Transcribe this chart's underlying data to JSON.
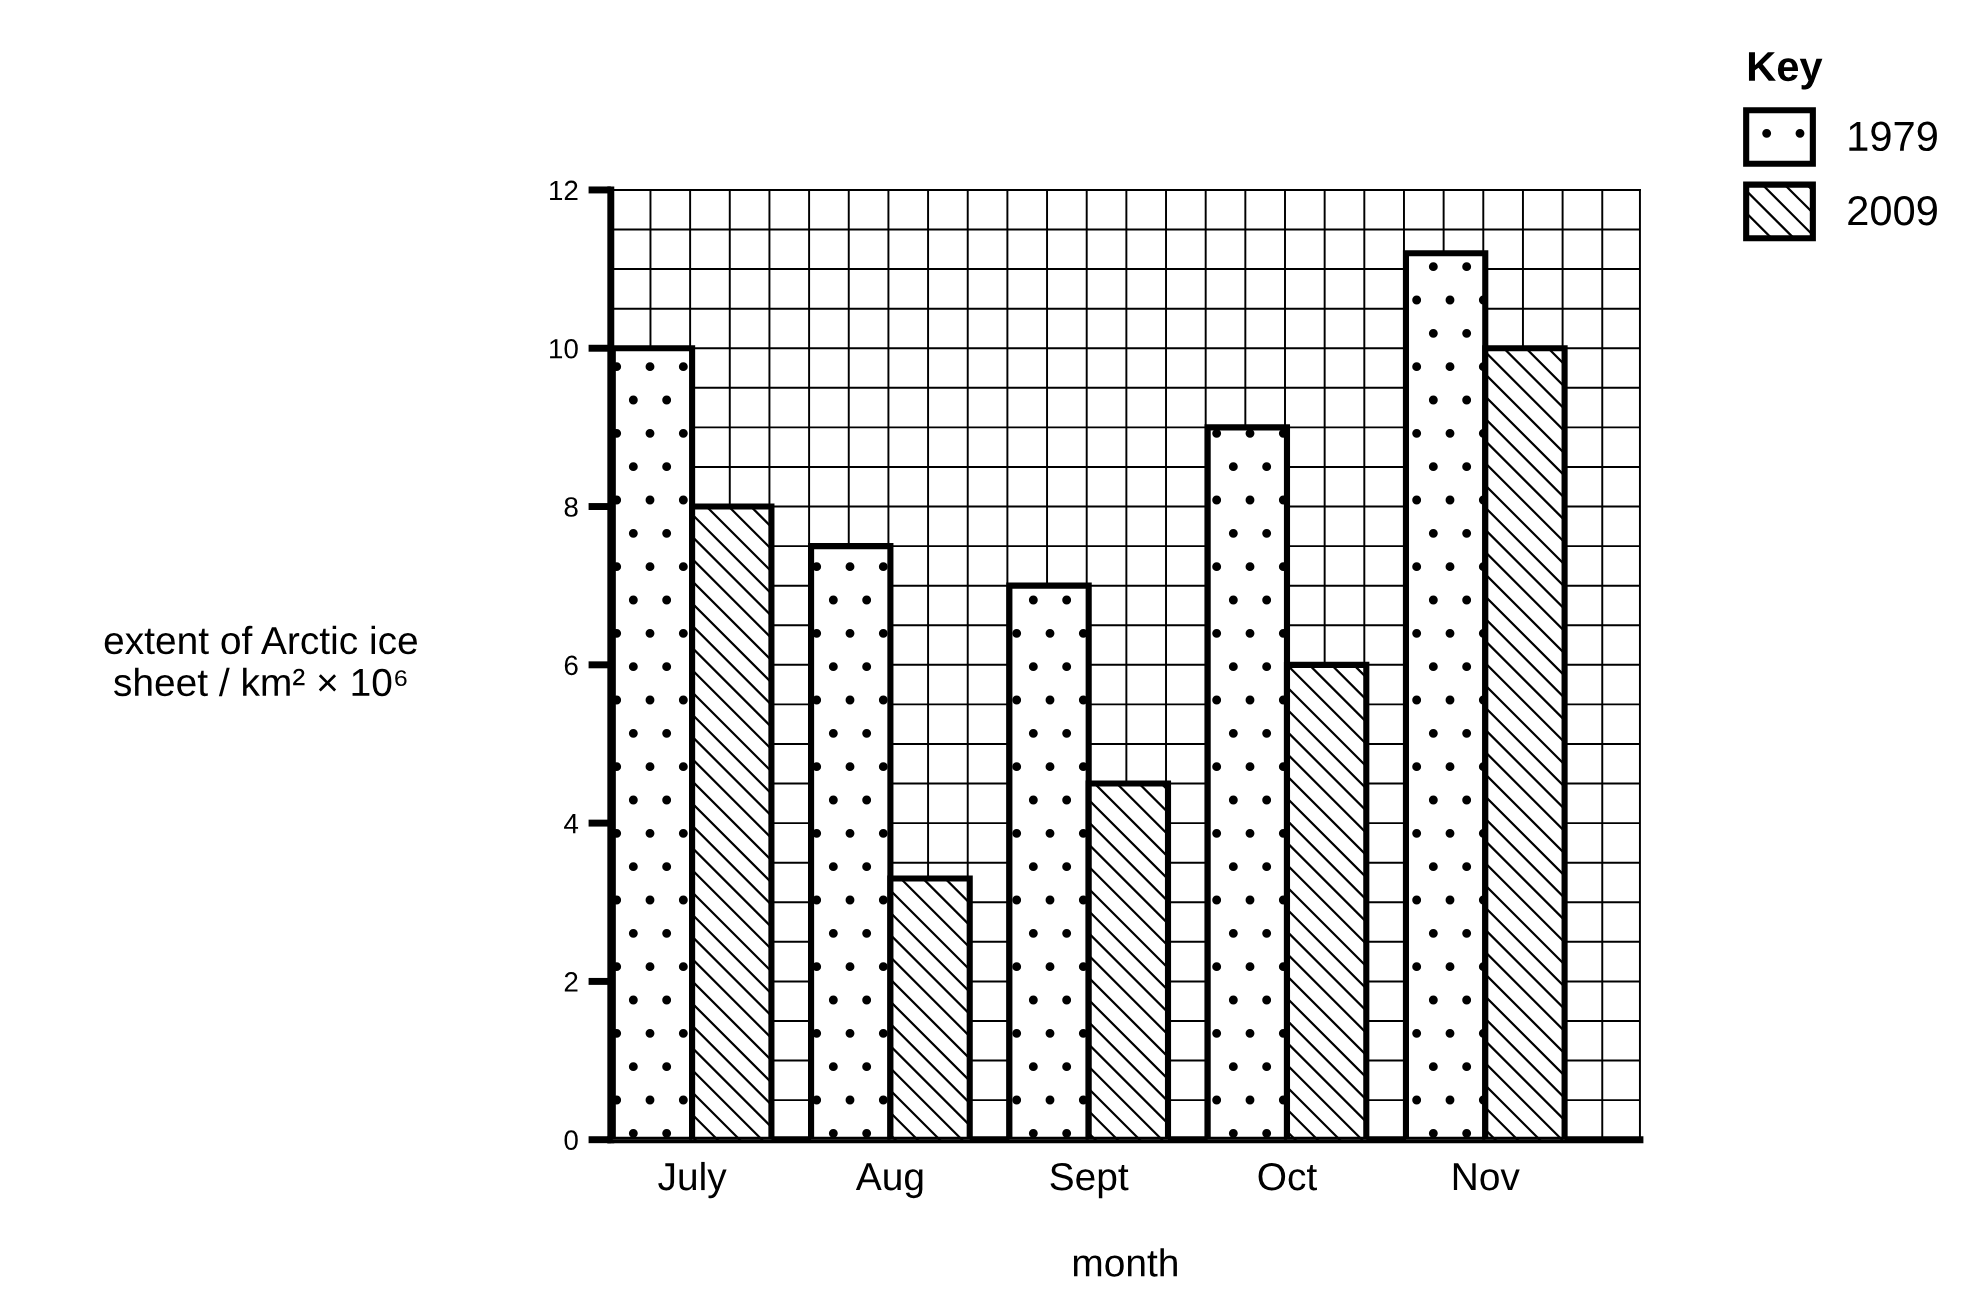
{
  "chart_data": {
    "type": "bar",
    "xlabel": "month",
    "ylabel": "extent of Arctic ice\nsheet / km² × 10⁶",
    "legend_title": "Key",
    "legend": "top right",
    "categories": [
      "July",
      "Aug",
      "Sept",
      "Oct",
      "Nov"
    ],
    "series": [
      {
        "name": "1979",
        "color": "#000000",
        "values": [
          10,
          7.5,
          7,
          9,
          11.2
        ]
      },
      {
        "name": "2009",
        "color": "#000000",
        "values": [
          8,
          3.3,
          4.5,
          6,
          10
        ]
      }
    ],
    "ylim": [
      0,
      12
    ],
    "yticks": [
      0,
      2,
      4,
      6,
      8,
      10,
      12
    ],
    "grid": true
  }
}
